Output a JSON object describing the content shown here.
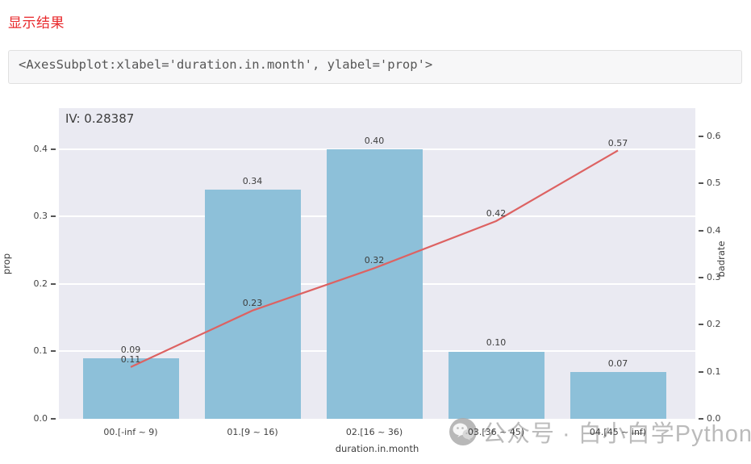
{
  "header": {
    "title": "显示结果"
  },
  "output": {
    "code": "<AxesSubplot:xlabel='duration.in.month', ylabel='prop'>"
  },
  "chart_data": {
    "type": "bar",
    "subtype": "bar+line-dual-axis",
    "annotation": "IV: 0.28387",
    "categories": [
      "00.[-inf ~ 9)",
      "01.[9 ~ 16)",
      "02.[16 ~ 36)",
      "03.[36 ~ 45)",
      "04.[45 ~ inf)"
    ],
    "xlabel": "duration.in.month",
    "series": [
      {
        "name": "prop",
        "type": "bar",
        "axis": "left",
        "values": [
          0.09,
          0.34,
          0.4,
          0.1,
          0.07
        ],
        "labels": [
          "0.09",
          "0.34",
          "0.40",
          "0.10",
          "0.07"
        ],
        "color": "#8dc0d9"
      },
      {
        "name": "badrate",
        "type": "line",
        "axis": "right",
        "values": [
          0.11,
          0.23,
          0.32,
          0.42,
          0.57
        ],
        "labels": [
          "0.11",
          "0.23",
          "0.32",
          "0.42",
          "0.57"
        ],
        "color": "#dd6262"
      }
    ],
    "left_axis": {
      "label": "prop",
      "ticks": [
        0.0,
        0.1,
        0.2,
        0.3,
        0.4
      ],
      "lim": [
        0,
        0.461
      ]
    },
    "right_axis": {
      "label": "badrate",
      "ticks": [
        0.0,
        0.1,
        0.2,
        0.3,
        0.4,
        0.5,
        0.6
      ],
      "lim": [
        0,
        0.66
      ]
    },
    "grid": true,
    "grid_color": "#ffffff",
    "plot_bg": "#eaeaf2",
    "legend": "none"
  },
  "watermark": {
    "icon": "wechat-icon",
    "text": "公众号 · 白小白学Python"
  }
}
